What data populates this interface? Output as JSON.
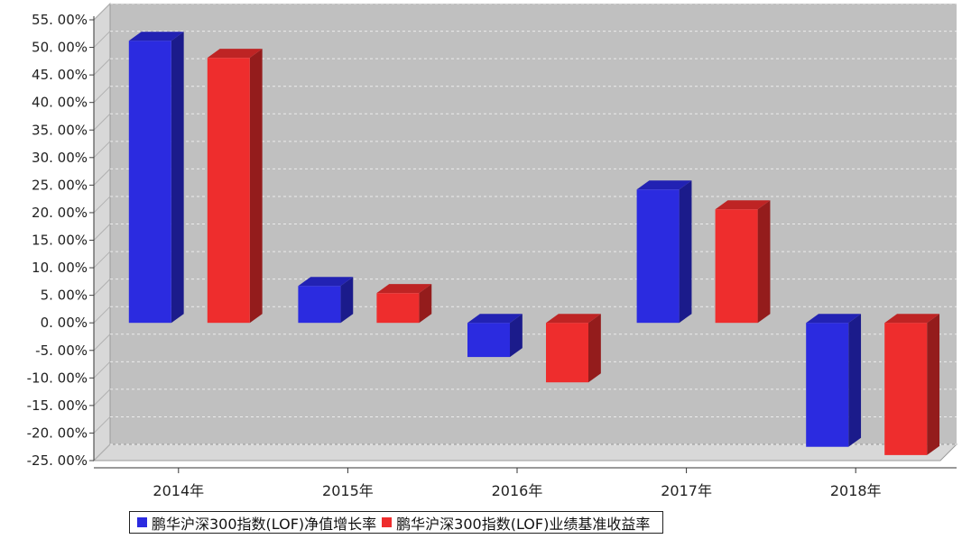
{
  "chart_data": {
    "type": "bar",
    "categories": [
      "2014年",
      "2015年",
      "2016年",
      "2017年",
      "2018年"
    ],
    "series": [
      {
        "name": "鹏华沪深300指数(LOF)净值增长率",
        "color": "#2b2be0",
        "values": [
          51.2,
          6.7,
          -6.2,
          24.2,
          -22.5
        ]
      },
      {
        "name": "鹏华沪深300指数(LOF)业绩基准收益率",
        "color": "#ee2d2d",
        "values": [
          48.1,
          5.4,
          -10.8,
          20.6,
          -24.0
        ]
      }
    ],
    "ylim": [
      -25,
      55
    ],
    "yticks": [
      55,
      50,
      45,
      40,
      35,
      30,
      25,
      20,
      15,
      10,
      5,
      0,
      -5,
      -10,
      -15,
      -20,
      -25
    ],
    "ytick_labels": [
      "55. 00%",
      "50. 00%",
      "45. 00%",
      "40. 00%",
      "35. 00%",
      "30. 00%",
      "25. 00%",
      "20. 00%",
      "15. 00%",
      "10. 00%",
      "5. 00%",
      "0. 00%",
      "-5. 00%",
      "-10. 00%",
      "-15. 00%",
      "-20. 00%",
      "-25. 00%"
    ],
    "title": "",
    "xlabel": "",
    "ylabel": "",
    "grid": true,
    "legend_position": "bottom",
    "plot_background": "#c0c0c0"
  }
}
